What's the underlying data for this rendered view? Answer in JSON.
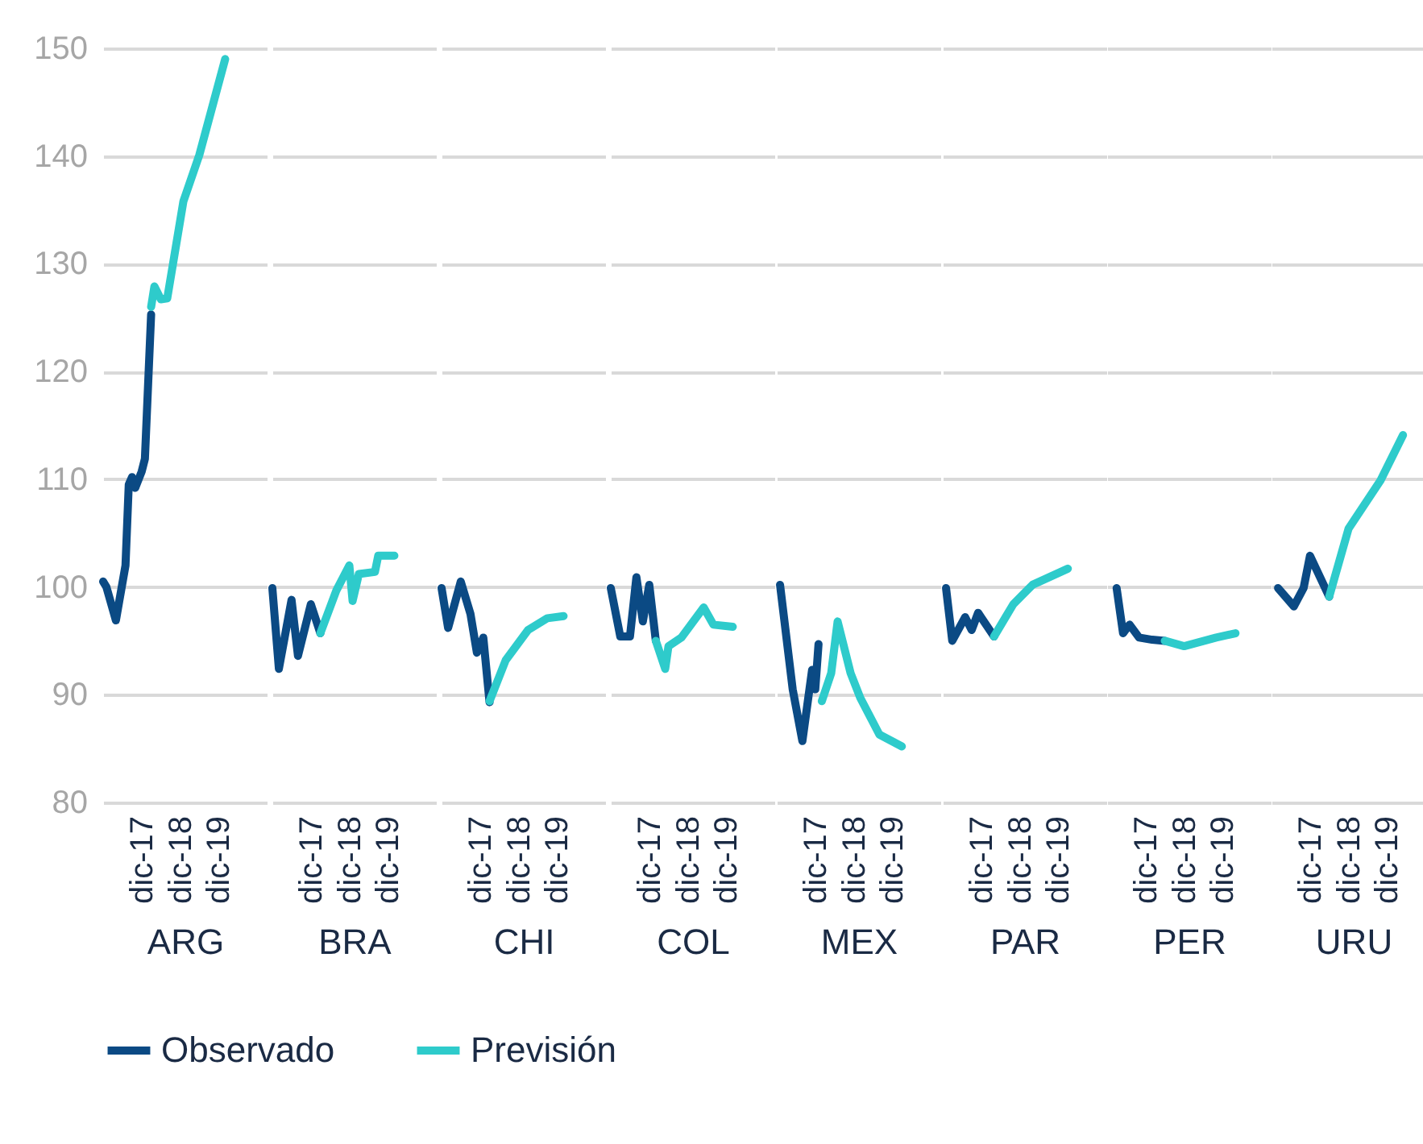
{
  "chart_data": [
    {
      "type": "line",
      "xlabel": "ARG",
      "xlim": [
        "2016-12",
        "2021-03"
      ],
      "xticks": [
        {
          "value": "2017-12",
          "label": "dic-17"
        },
        {
          "value": "2018-12",
          "label": "dic-18"
        },
        {
          "value": "2019-12",
          "label": "dic-19"
        }
      ],
      "ylim": [
        80,
        150
      ],
      "yticks": [
        80,
        90,
        100,
        110,
        120,
        130,
        140,
        150
      ],
      "grid": "y",
      "legend": "bottom",
      "series": [
        {
          "name": "Observado",
          "color": "#0b4a84",
          "x": [
            "2016-12",
            "2017-01",
            "2017-04",
            "2017-07",
            "2017-08",
            "2017-09",
            "2017-10",
            "2017-12",
            "2018-01",
            "2018-03"
          ],
          "values": [
            100.5,
            100,
            96.9,
            102,
            109.5,
            110.2,
            109.2,
            110.7,
            111.9,
            125.3
          ]
        },
        {
          "name": "Previsión",
          "color": "#2ecbcb",
          "x": [
            "2018-03",
            "2018-04",
            "2018-06",
            "2018-08",
            "2019-01",
            "2019-06",
            "2020-02"
          ],
          "values": [
            126,
            127.9,
            126.7,
            126.8,
            135.8,
            140.1,
            149
          ]
        }
      ]
    },
    {
      "type": "line",
      "xlabel": "BRA",
      "xlim": [
        "2016-12",
        "2021-03"
      ],
      "xticks": [
        {
          "value": "2017-12",
          "label": "dic-17"
        },
        {
          "value": "2018-12",
          "label": "dic-18"
        },
        {
          "value": "2019-12",
          "label": "dic-19"
        }
      ],
      "ylim": [
        80,
        150
      ],
      "yticks": [
        80,
        90,
        100,
        110,
        120,
        130,
        140,
        150
      ],
      "grid": "y",
      "tick_labels": "x",
      "series": [
        {
          "name": "Observado",
          "color": "#0b4a84",
          "x": [
            "2016-12",
            "2017-02",
            "2017-06",
            "2017-08",
            "2017-12",
            "2018-03"
          ],
          "values": [
            99.9,
            92.4,
            98.8,
            93.6,
            98.4,
            95.7
          ]
        },
        {
          "name": "Previsión",
          "color": "#2ecbcb",
          "x": [
            "2018-03",
            "2018-08",
            "2018-12",
            "2019-01",
            "2019-03",
            "2019-08",
            "2019-09",
            "2020-02"
          ],
          "values": [
            95.7,
            99.7,
            102,
            98.7,
            101.2,
            101.4,
            102.9,
            102.9
          ]
        }
      ]
    },
    {
      "type": "line",
      "xlabel": "CHI",
      "xlim": [
        "2016-12",
        "2021-03"
      ],
      "xticks": [
        {
          "value": "2017-12",
          "label": "dic-17"
        },
        {
          "value": "2018-12",
          "label": "dic-18"
        },
        {
          "value": "2019-12",
          "label": "dic-19"
        }
      ],
      "ylim": [
        80,
        150
      ],
      "yticks": [
        80,
        90,
        100,
        110,
        120,
        130,
        140,
        150
      ],
      "grid": "y",
      "tick_labels": "x",
      "series": [
        {
          "name": "Observado",
          "color": "#0b4a84",
          "x": [
            "2016-12",
            "2017-02",
            "2017-06",
            "2017-09",
            "2017-11",
            "2018-01",
            "2018-03"
          ],
          "values": [
            99.9,
            96.2,
            100.5,
            97.5,
            93.9,
            95.3,
            89.3
          ]
        },
        {
          "name": "Previsión",
          "color": "#2ecbcb",
          "x": [
            "2018-03",
            "2018-08",
            "2019-03",
            "2019-09",
            "2020-02"
          ],
          "values": [
            89.4,
            93.2,
            96,
            97.1,
            97.3
          ]
        }
      ]
    },
    {
      "type": "line",
      "xlabel": "COL",
      "xlim": [
        "2016-12",
        "2021-03"
      ],
      "xticks": [
        {
          "value": "2017-12",
          "label": "dic-17"
        },
        {
          "value": "2018-12",
          "label": "dic-18"
        },
        {
          "value": "2019-12",
          "label": "dic-19"
        }
      ],
      "ylim": [
        80,
        150
      ],
      "yticks": [
        80,
        90,
        100,
        110,
        120,
        130,
        140,
        150
      ],
      "grid": "y",
      "tick_labels": "x",
      "series": [
        {
          "name": "Observado",
          "color": "#0b4a84",
          "x": [
            "2016-12",
            "2017-03",
            "2017-06",
            "2017-08",
            "2017-10",
            "2017-12",
            "2018-02"
          ],
          "values": [
            99.9,
            95.4,
            95.4,
            100.9,
            96.8,
            100.2,
            95
          ]
        },
        {
          "name": "Previsión",
          "color": "#2ecbcb",
          "x": [
            "2018-02",
            "2018-05",
            "2018-06",
            "2018-10",
            "2019-05",
            "2019-08",
            "2020-02"
          ],
          "values": [
            95,
            92.4,
            94.5,
            95.3,
            98.1,
            96.5,
            96.3
          ]
        }
      ]
    },
    {
      "type": "line",
      "xlabel": "MEX",
      "xlim": [
        "2016-12",
        "2021-03"
      ],
      "xticks": [
        {
          "value": "2017-12",
          "label": "dic-17"
        },
        {
          "value": "2018-12",
          "label": "dic-18"
        },
        {
          "value": "2019-12",
          "label": "dic-19"
        }
      ],
      "ylim": [
        80,
        150
      ],
      "yticks": [
        80,
        90,
        100,
        110,
        120,
        130,
        140,
        150
      ],
      "grid": "y",
      "tick_labels": "x",
      "series": [
        {
          "name": "Observado",
          "color": "#0b4a84",
          "x": [
            "2017-01",
            "2017-05",
            "2017-08",
            "2017-11",
            "2017-12",
            "2018-01"
          ],
          "values": [
            100.2,
            90.5,
            85.7,
            92.3,
            90.5,
            94.7
          ]
        },
        {
          "name": "Previsión",
          "color": "#2ecbcb",
          "x": [
            "2018-02",
            "2018-05",
            "2018-07",
            "2018-11",
            "2019-02",
            "2019-08",
            "2020-03"
          ],
          "values": [
            89.4,
            92,
            96.8,
            92,
            89.7,
            86.3,
            85.2
          ]
        }
      ]
    },
    {
      "type": "line",
      "xlabel": "PAR",
      "xlim": [
        "2016-12",
        "2021-03"
      ],
      "xticks": [
        {
          "value": "2017-12",
          "label": "dic-17"
        },
        {
          "value": "2018-12",
          "label": "dic-18"
        },
        {
          "value": "2019-12",
          "label": "dic-19"
        }
      ],
      "ylim": [
        80,
        150
      ],
      "yticks": [
        80,
        90,
        100,
        110,
        120,
        130,
        140,
        150
      ],
      "grid": "y",
      "tick_labels": "x",
      "series": [
        {
          "name": "Observado",
          "color": "#0b4a84",
          "x": [
            "2017-01",
            "2017-03",
            "2017-07",
            "2017-09",
            "2017-11",
            "2018-04"
          ],
          "values": [
            99.9,
            95,
            97.2,
            96,
            97.6,
            95.4
          ]
        },
        {
          "name": "Previsión",
          "color": "#2ecbcb",
          "x": [
            "2018-04",
            "2018-10",
            "2019-04",
            "2020-03"
          ],
          "values": [
            95.4,
            98.4,
            100.2,
            101.7
          ]
        }
      ]
    },
    {
      "type": "line",
      "xlabel": "PER",
      "xlim": [
        "2016-12",
        "2021-03"
      ],
      "xticks": [
        {
          "value": "2017-12",
          "label": "dic-17"
        },
        {
          "value": "2018-12",
          "label": "dic-18"
        },
        {
          "value": "2019-12",
          "label": "dic-19"
        }
      ],
      "ylim": [
        80,
        150
      ],
      "yticks": [
        80,
        90,
        100,
        110,
        120,
        130,
        140,
        150
      ],
      "grid": "y",
      "tick_labels": "x",
      "series": [
        {
          "name": "Observado",
          "color": "#0b4a84",
          "x": [
            "2017-03",
            "2017-05",
            "2017-07",
            "2017-10",
            "2018-02",
            "2018-06"
          ],
          "values": [
            99.9,
            95.7,
            96.5,
            95.3,
            95.1,
            95
          ]
        },
        {
          "name": "Previsión",
          "color": "#2ecbcb",
          "x": [
            "2018-06",
            "2018-12",
            "2019-10",
            "2020-04"
          ],
          "values": [
            95,
            94.5,
            95.3,
            95.7
          ]
        }
      ]
    },
    {
      "type": "line",
      "xlabel": "URU",
      "xlim": [
        "2016-12",
        "2021-03"
      ],
      "xticks": [
        {
          "value": "2017-12",
          "label": "dic-17"
        },
        {
          "value": "2018-12",
          "label": "dic-18"
        },
        {
          "value": "2019-12",
          "label": "dic-19"
        }
      ],
      "ylim": [
        80,
        150
      ],
      "yticks": [
        80,
        90,
        100,
        110,
        120,
        130,
        140,
        150
      ],
      "grid": "y",
      "tick_labels": "x",
      "series": [
        {
          "name": "Observado",
          "color": "#0b4a84",
          "x": [
            "2017-02",
            "2017-07",
            "2017-10",
            "2017-12",
            "2018-06"
          ],
          "values": [
            99.9,
            98.2,
            99.9,
            102.9,
            99.1
          ]
        },
        {
          "name": "Previsión",
          "color": "#2ecbcb",
          "x": [
            "2018-06",
            "2018-12",
            "2019-10",
            "2020-05"
          ],
          "values": [
            99.1,
            105.4,
            109.9,
            114.1
          ]
        }
      ]
    }
  ]
}
